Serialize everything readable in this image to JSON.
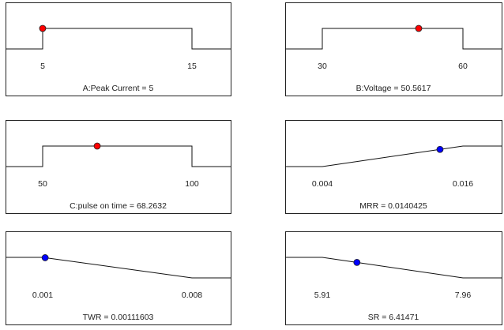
{
  "chart_data": [
    {
      "type": "line",
      "subtype": "desirability-ramp",
      "factor": "A",
      "label": "A:Peak Current = 5",
      "shape": "range",
      "range": [
        5,
        15
      ],
      "tick_labels": [
        "5",
        "15"
      ],
      "current_value": 5,
      "marker_color": "#ff0000"
    },
    {
      "type": "line",
      "subtype": "desirability-ramp",
      "factor": "B",
      "label": "B:Voltage = 50.5617",
      "shape": "range",
      "range": [
        30,
        60
      ],
      "tick_labels": [
        "30",
        "60"
      ],
      "current_value": 50.5617,
      "marker_color": "#ff0000"
    },
    {
      "type": "line",
      "subtype": "desirability-ramp",
      "factor": "C",
      "label": "C:pulse on time = 68.2632",
      "shape": "range",
      "range": [
        50,
        100
      ],
      "tick_labels": [
        "50",
        "100"
      ],
      "current_value": 68.2632,
      "marker_color": "#ff0000"
    },
    {
      "type": "line",
      "subtype": "desirability-ramp",
      "response": "MRR",
      "label": "MRR = 0.0140425",
      "shape": "maximize",
      "range": [
        0.004,
        0.016
      ],
      "tick_labels": [
        "0.004",
        "0.016"
      ],
      "current_value": 0.0140425,
      "marker_color": "#0000ff"
    },
    {
      "type": "line",
      "subtype": "desirability-ramp",
      "response": "TWR",
      "label": "TWR = 0.00111603",
      "shape": "minimize",
      "range": [
        0.001,
        0.008
      ],
      "tick_labels": [
        "0.001",
        "0.008"
      ],
      "current_value": 0.00111603,
      "marker_color": "#0000ff"
    },
    {
      "type": "line",
      "subtype": "desirability-ramp",
      "response": "SR",
      "label": "SR = 6.41471",
      "shape": "minimize",
      "range": [
        5.91,
        7.96
      ],
      "tick_labels": [
        "5.91",
        "7.96"
      ],
      "current_value": 6.41471,
      "marker_color": "#0000ff"
    }
  ]
}
